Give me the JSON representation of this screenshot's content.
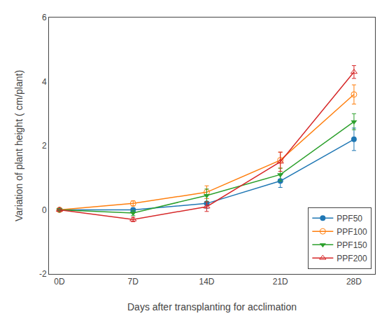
{
  "chart_data": {
    "type": "line",
    "x": [
      0,
      7,
      14,
      21,
      28
    ],
    "xlabel": "Days after transplanting for acclimation",
    "ylabel": "Variation of plant height ( cm/plant)",
    "xlim": [
      -1,
      30
    ],
    "xticks": [
      {
        "value": 0,
        "label": "0D"
      },
      {
        "value": 7,
        "label": "7D"
      },
      {
        "value": 14,
        "label": "14D"
      },
      {
        "value": 21,
        "label": "21D"
      },
      {
        "value": 28,
        "label": "28D"
      }
    ],
    "ylim": [
      -2,
      6
    ],
    "yticks": [
      -2,
      0,
      2,
      4,
      6
    ],
    "grid": false,
    "legend": "lower right",
    "series": [
      {
        "name": "PPF50",
        "values": [
          0.0,
          0.0,
          0.2,
          0.9,
          2.2
        ],
        "yerr": [
          0.0,
          0.05,
          0.15,
          0.2,
          0.35
        ],
        "marker": "circle"
      },
      {
        "name": "PPF100",
        "values": [
          0.0,
          0.2,
          0.55,
          1.55,
          3.6
        ],
        "yerr": [
          0.0,
          0.08,
          0.2,
          0.25,
          0.3
        ],
        "marker": "circle-open"
      },
      {
        "name": "PPF150",
        "values": [
          0.0,
          -0.1,
          0.45,
          1.1,
          2.75
        ],
        "yerr": [
          0.0,
          0.08,
          0.2,
          0.2,
          0.25
        ],
        "marker": "triangle-down"
      },
      {
        "name": "PPF200",
        "values": [
          0.0,
          -0.3,
          0.1,
          1.5,
          4.3
        ],
        "yerr": [
          0.0,
          0.07,
          0.15,
          0.3,
          0.2
        ],
        "marker": "triangle-up-open"
      }
    ]
  }
}
